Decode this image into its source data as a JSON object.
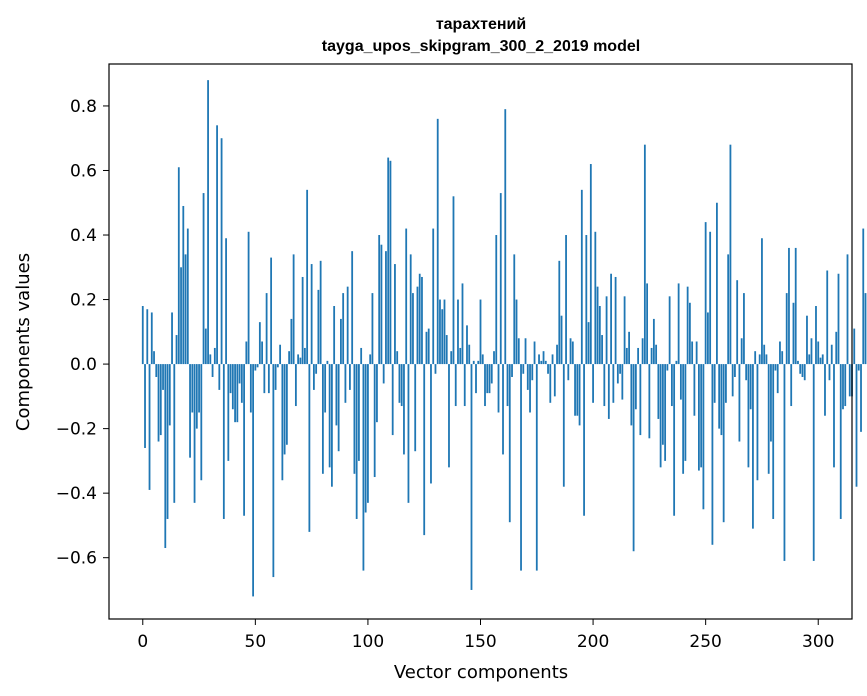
{
  "chart_data": {
    "type": "bar",
    "title": "тарахтений",
    "subtitle": "tayga_upos_skipgram_300_2_2019 model",
    "xlabel": "Vector components",
    "ylabel": "Components values",
    "xlim": [
      -15,
      315
    ],
    "ylim": [
      -0.79,
      0.93
    ],
    "xticks": [
      0,
      50,
      100,
      150,
      200,
      250,
      300
    ],
    "yticks": [
      -0.6,
      -0.4,
      -0.2,
      0.0,
      0.2,
      0.4,
      0.6,
      0.8
    ],
    "xtick_labels": [
      "0",
      "50",
      "100",
      "150",
      "200",
      "250",
      "300"
    ],
    "ytick_labels": [
      "−0.6",
      "−0.4",
      "−0.2",
      "0.0",
      "0.2",
      "0.4",
      "0.6",
      "0.8"
    ],
    "bar_color": "#1f77b4",
    "grid": false,
    "values": [
      0.18,
      -0.26,
      0.17,
      -0.39,
      0.16,
      0.04,
      -0.04,
      -0.24,
      -0.22,
      -0.08,
      -0.57,
      -0.48,
      -0.19,
      0.16,
      -0.43,
      0.09,
      0.61,
      0.3,
      0.49,
      0.34,
      0.42,
      -0.29,
      -0.15,
      -0.43,
      -0.2,
      -0.15,
      -0.36,
      0.53,
      0.11,
      0.88,
      0.03,
      -0.04,
      0.05,
      0.74,
      -0.08,
      0.7,
      -0.48,
      0.39,
      -0.3,
      -0.09,
      -0.14,
      -0.18,
      -0.18,
      -0.06,
      -0.12,
      -0.47,
      0.07,
      0.41,
      -0.15,
      -0.72,
      -0.02,
      -0.01,
      0.13,
      0.07,
      -0.09,
      0.22,
      -0.09,
      0.33,
      -0.66,
      -0.08,
      -0.01,
      0.06,
      -0.36,
      -0.28,
      -0.25,
      0.04,
      0.14,
      0.34,
      -0.13,
      0.03,
      0.02,
      0.27,
      0.05,
      0.54,
      -0.52,
      0.31,
      -0.08,
      -0.03,
      0.23,
      0.32,
      -0.34,
      -0.15,
      0.01,
      -0.32,
      -0.38,
      0.18,
      -0.19,
      -0.27,
      0.14,
      0.22,
      -0.12,
      0.24,
      -0.08,
      0.35,
      -0.34,
      -0.48,
      -0.3,
      0.05,
      -0.64,
      -0.46,
      -0.43,
      0.03,
      0.22,
      -0.35,
      -0.18,
      0.4,
      0.37,
      -0.06,
      0.35,
      0.64,
      0.63,
      -0.22,
      0.31,
      0.04,
      -0.12,
      -0.13,
      -0.28,
      0.42,
      -0.43,
      0.34,
      0.22,
      -0.27,
      0.24,
      0.28,
      0.27,
      -0.53,
      0.1,
      0.11,
      -0.37,
      0.42,
      -0.03,
      0.76,
      0.2,
      0.17,
      0.2,
      0.09,
      -0.32,
      0.04,
      0.52,
      -0.13,
      0.2,
      0.05,
      0.25,
      -0.13,
      0.12,
      0.06,
      -0.7,
      0.01,
      -0.09,
      0.01,
      0.2,
      0.03,
      -0.13,
      -0.09,
      -0.09,
      -0.06,
      0.04,
      0.4,
      -0.15,
      0.53,
      -0.28,
      0.79,
      -0.13,
      -0.49,
      -0.04,
      0.34,
      0.2,
      0.08,
      -0.64,
      -0.03,
      0.08,
      -0.08,
      -0.15,
      -0.05,
      0.07,
      -0.64,
      0.03,
      0.01,
      0.04,
      0.01,
      -0.03,
      -0.12,
      0.03,
      -0.1,
      0.06,
      0.32,
      0.15,
      -0.38,
      0.4,
      -0.05,
      0.08,
      0.07,
      -0.16,
      -0.16,
      -0.19,
      0.54,
      -0.47,
      0.4,
      0.13,
      0.62,
      -0.12,
      0.41,
      0.24,
      0.18,
      0.09,
      -0.13,
      0.21,
      -0.17,
      0.28,
      -0.12,
      0.27,
      -0.06,
      -0.03,
      -0.11,
      0.21,
      0.05,
      0.1,
      -0.19,
      -0.58,
      -0.14,
      0.05,
      -0.22,
      0.08,
      0.68,
      0.25,
      -0.23,
      0.05,
      0.14,
      0.06,
      -0.17,
      -0.32,
      -0.25,
      -0.3,
      -0.02,
      0.21,
      -0.13,
      -0.47,
      0.01,
      0.25,
      -0.11,
      -0.34,
      -0.3,
      0.24,
      0.19,
      0.07,
      -0.16,
      0.07,
      -0.33,
      -0.32,
      -0.45,
      0.44,
      0.16,
      0.41,
      -0.56,
      -0.12,
      0.5,
      -0.2,
      -0.22,
      -0.49,
      -0.12,
      0.34,
      0.68,
      -0.1,
      -0.04,
      0.26,
      -0.24,
      0.08,
      0.22,
      -0.05,
      -0.32,
      -0.14,
      -0.51,
      0.04,
      -0.36,
      0.03,
      0.39,
      0.06,
      0.03,
      -0.34,
      -0.24,
      -0.48,
      -0.02,
      -0.09,
      0.07,
      0.04,
      -0.61,
      0.22,
      0.36,
      -0.13,
      0.19,
      0.36,
      0.01,
      -0.03,
      -0.04,
      -0.05,
      0.15,
      0.03,
      0.08,
      -0.61,
      0.18,
      0.07,
      0.02,
      0.03,
      -0.16,
      0.29,
      -0.05,
      0.06,
      -0.32,
      0.1,
      0.28,
      -0.48,
      -0.14,
      -0.13,
      0.34,
      -0.1,
      -0.1,
      0.11,
      -0.38,
      -0.02,
      -0.21,
      0.42,
      0.22
    ]
  }
}
